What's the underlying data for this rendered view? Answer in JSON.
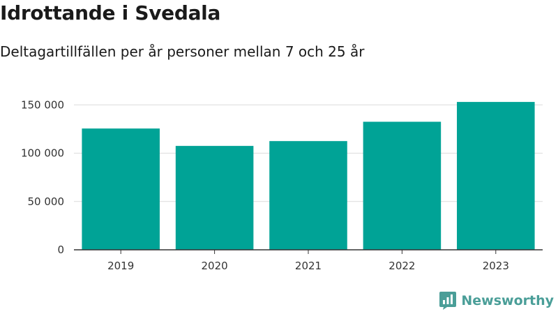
{
  "chart_data": {
    "type": "bar",
    "title": "Idrottande i Svedala",
    "subtitle": "Deltagartillfällen per år personer mellan 7 och 25 år",
    "categories": [
      "2019",
      "2020",
      "2021",
      "2022",
      "2023"
    ],
    "values": [
      125500,
      107500,
      112500,
      132500,
      153000
    ],
    "ylim": [
      0,
      160000
    ],
    "yticks": [
      0,
      50000,
      100000,
      150000
    ],
    "ytick_labels": [
      "0",
      "50 000",
      "100 000",
      "150 000"
    ],
    "grid": true,
    "bar_color": "#00a396",
    "xlabel": "",
    "ylabel": ""
  },
  "brand": {
    "name": "Newsworthy",
    "logo_icon": "newsworthy-logo-icon",
    "color": "#4a9e98"
  }
}
